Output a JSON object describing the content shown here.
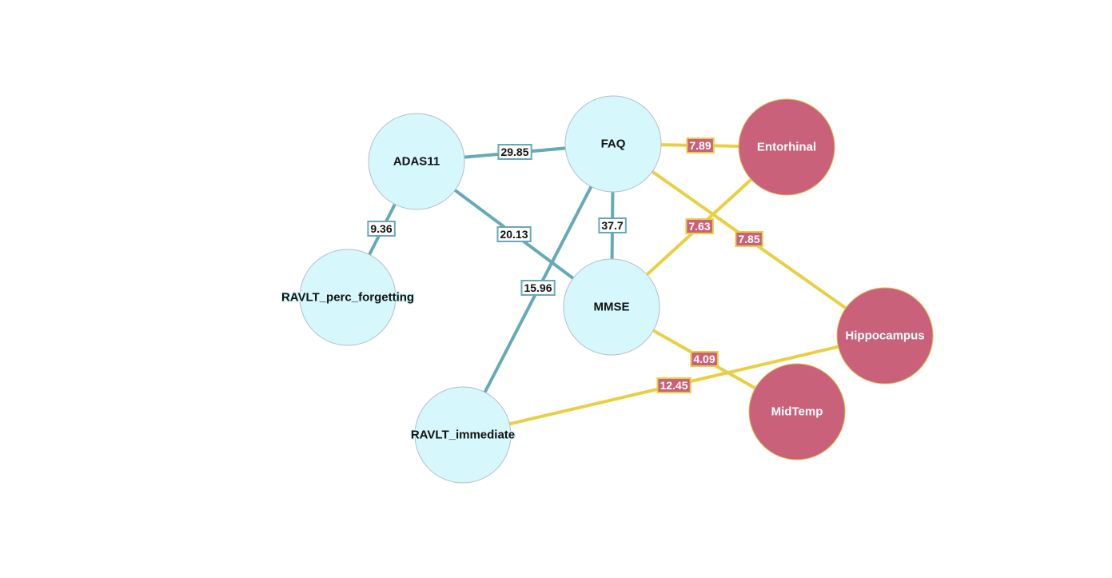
{
  "colors": {
    "cognitive_node": "#d6f8fd",
    "imaging_node": "#c9617a",
    "cognitive_edge": "#66a9b7",
    "imaging_edge": "#e8cf44"
  },
  "nodes": [
    {
      "id": "ADAS11",
      "label": "ADAS11",
      "group": "cognitive"
    },
    {
      "id": "FAQ",
      "label": "FAQ",
      "group": "cognitive"
    },
    {
      "id": "RAVLT_perc_forgetting",
      "label": "RAVLT_perc_forgetting",
      "group": "cognitive"
    },
    {
      "id": "MMSE",
      "label": "MMSE",
      "group": "cognitive"
    },
    {
      "id": "RAVLT_immediate",
      "label": "RAVLT_immediate",
      "group": "cognitive"
    },
    {
      "id": "Entorhinal",
      "label": "Entorhinal",
      "group": "imaging"
    },
    {
      "id": "Hippocampus",
      "label": "Hippocampus",
      "group": "imaging"
    },
    {
      "id": "MidTemp",
      "label": "MidTemp",
      "group": "imaging"
    }
  ],
  "edges": [
    {
      "source": "ADAS11",
      "target": "FAQ",
      "weight": "29.85",
      "group": "cognitive"
    },
    {
      "source": "ADAS11",
      "target": "RAVLT_perc_forgetting",
      "weight": "9.36",
      "group": "cognitive"
    },
    {
      "source": "ADAS11",
      "target": "MMSE",
      "weight": "20.13",
      "group": "cognitive"
    },
    {
      "source": "FAQ",
      "target": "MMSE",
      "weight": "37.7",
      "group": "cognitive"
    },
    {
      "source": "FAQ",
      "target": "RAVLT_immediate",
      "weight": "15.96",
      "group": "cognitive"
    },
    {
      "source": "FAQ",
      "target": "Entorhinal",
      "weight": "7.89",
      "group": "imaging"
    },
    {
      "source": "FAQ",
      "target": "Hippocampus",
      "weight": "7.85",
      "group": "imaging"
    },
    {
      "source": "MMSE",
      "target": "Entorhinal",
      "weight": "7.63",
      "group": "imaging"
    },
    {
      "source": "MMSE",
      "target": "MidTemp",
      "weight": "4.09",
      "group": "imaging"
    },
    {
      "source": "RAVLT_immediate",
      "target": "Hippocampus",
      "weight": "12.45",
      "group": "imaging"
    }
  ]
}
